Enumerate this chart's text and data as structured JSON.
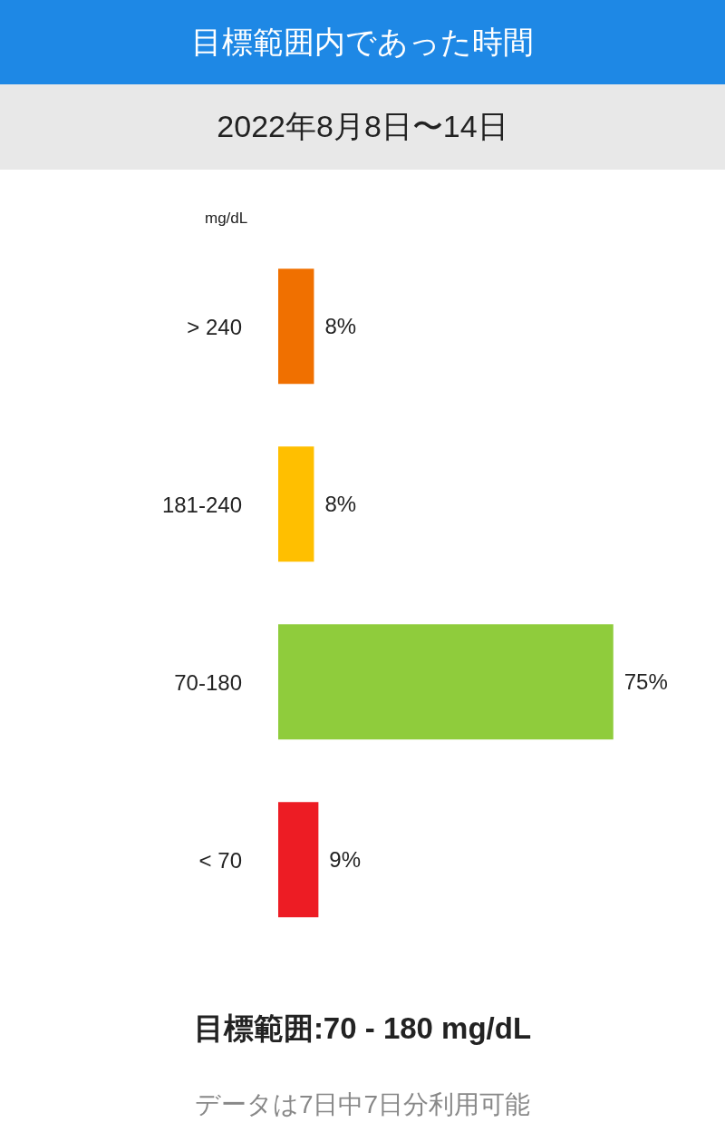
{
  "chart_data": {
    "type": "bar",
    "orientation": "horizontal",
    "title": "目標範囲内であった時間",
    "subtitle": "2022年8月8日〜14日",
    "ylabel": "mg/dL",
    "categories": [
      "> 240",
      "181-240",
      "70-180",
      "< 70"
    ],
    "values": [
      8,
      8,
      75,
      9
    ],
    "colors": [
      "#f07000",
      "#ffbf00",
      "#8fcc3c",
      "#ed1c24"
    ],
    "value_labels": [
      "8%",
      "8%",
      "75%",
      "9%"
    ],
    "xlim": [
      0,
      100
    ],
    "tick_labels": "y",
    "annotations": [
      "目標範囲:70 - 180 mg/dL",
      "データは7日中7日分利用可能"
    ]
  }
}
